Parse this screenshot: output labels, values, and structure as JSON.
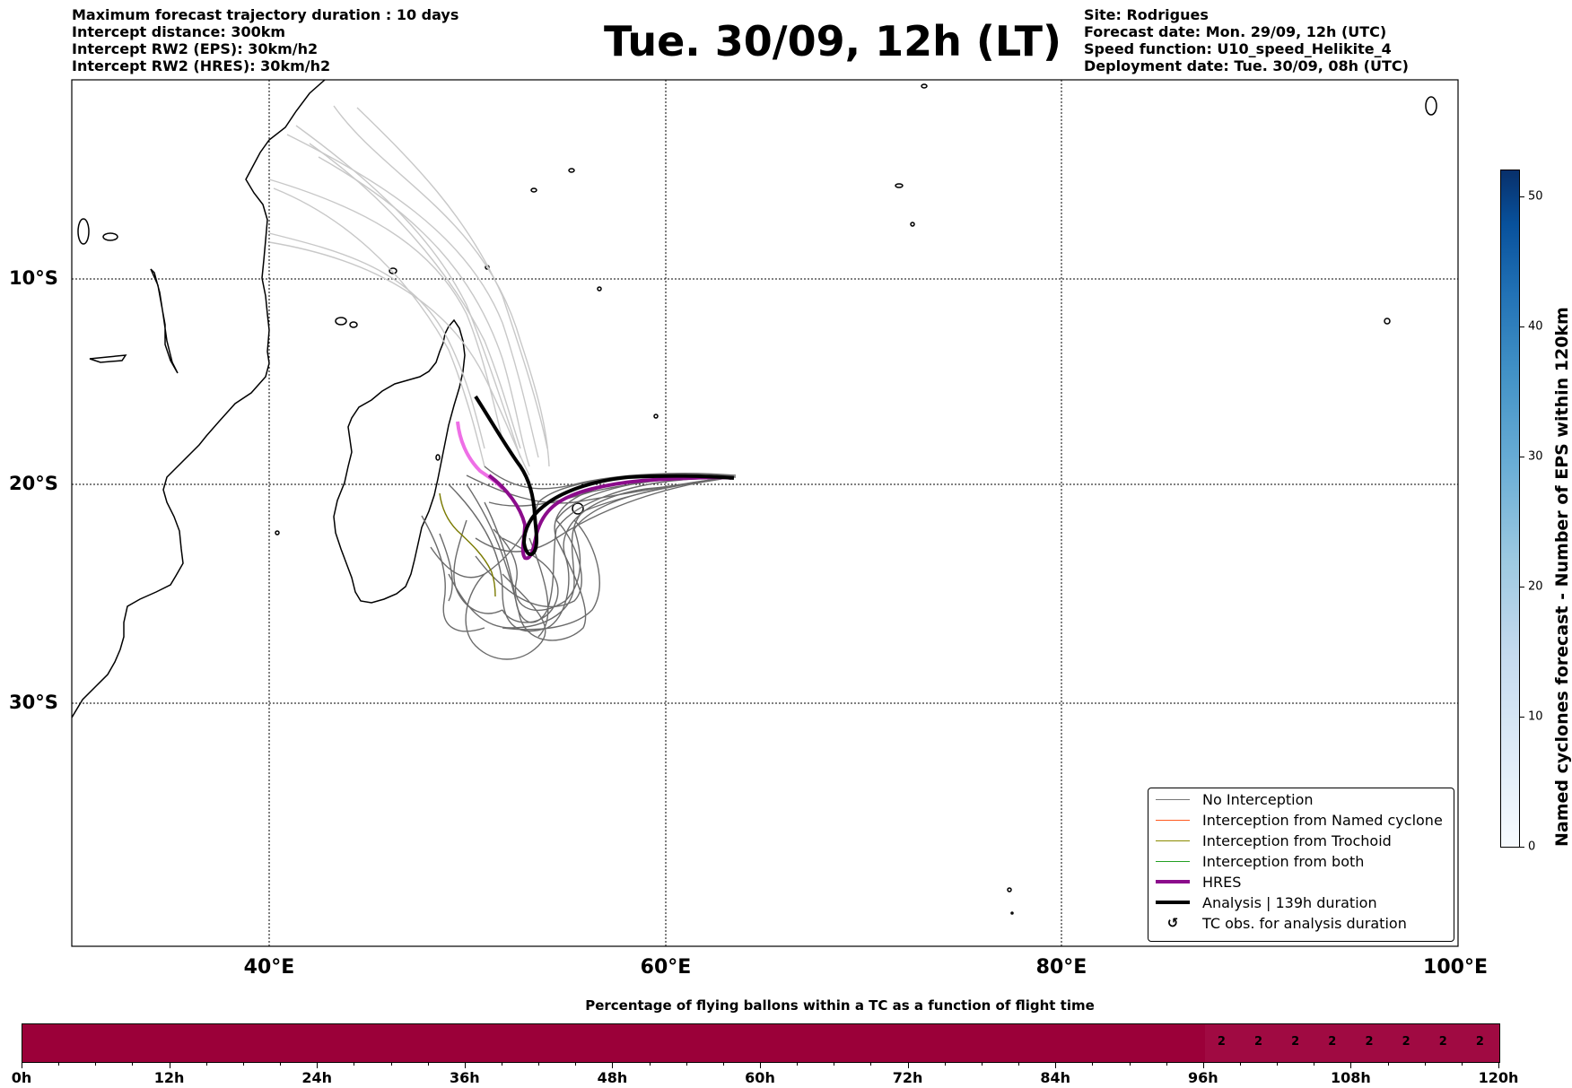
{
  "header": {
    "left": [
      "Maximum forecast trajectory duration : 10 days",
      "Intercept distance: 300km",
      "Intercept RW2 (EPS):  30km/h2",
      "Intercept RW2 (HRES): 30km/h2"
    ],
    "title": "Tue. 30/09, 12h (LT)",
    "right": [
      "Site: Rodrigues",
      "Forecast date: Mon. 29/09, 12h (UTC)",
      "Speed function: U10_speed_Helikite_4",
      "Deployment date: Tue. 30/09, 08h (UTC)"
    ]
  },
  "map": {
    "lon_range": [
      30,
      100
    ],
    "lat_range": [
      0,
      -43.5
    ],
    "lat_labels": [
      "10°S",
      "20°S",
      "30°S"
    ],
    "lon_labels": [
      "40°E",
      "60°E",
      "80°E",
      "100°E"
    ],
    "colors": {
      "eps_no_interception": "#6b6b6b",
      "eps_faint": "#c8c8c8",
      "hres": "#8b0c8b",
      "hres_light": "#ee6fe6",
      "analysis": "#000000",
      "trochoid": "#7a7a00"
    }
  },
  "legend": {
    "items": [
      {
        "label": "No Interception",
        "color": "#777777",
        "style": "thin"
      },
      {
        "label": "Interception from Named cyclone",
        "color": "#ff5a1f",
        "style": "thin"
      },
      {
        "label": "Interception from Trochoid",
        "color": "#8a8a00",
        "style": "thin"
      },
      {
        "label": "Interception from both",
        "color": "#22a022",
        "style": "thin"
      },
      {
        "label": "HRES",
        "color": "#8b0c8b",
        "style": "thick"
      },
      {
        "label": "Analysis | 139h duration",
        "color": "#000000",
        "style": "thick"
      },
      {
        "label": "TC obs. for analysis duration",
        "icon": "↺",
        "style": "symbol"
      }
    ]
  },
  "colorbar": {
    "title": "Named cyclones forecast - Number of EPS within 120km",
    "ticks": [
      "0",
      "10",
      "20",
      "30",
      "40",
      "50"
    ],
    "max": 52
  },
  "timeline": {
    "title": "Percentage of flying ballons within a TC as a function of flight time",
    "labels": [
      "0h",
      "12h",
      "24h",
      "36h",
      "48h",
      "60h",
      "72h",
      "84h",
      "96h",
      "108h",
      "120h"
    ],
    "max_hours": 120,
    "percent_values": [
      "2",
      "2",
      "2",
      "2",
      "2",
      "2",
      "2",
      "2"
    ]
  }
}
